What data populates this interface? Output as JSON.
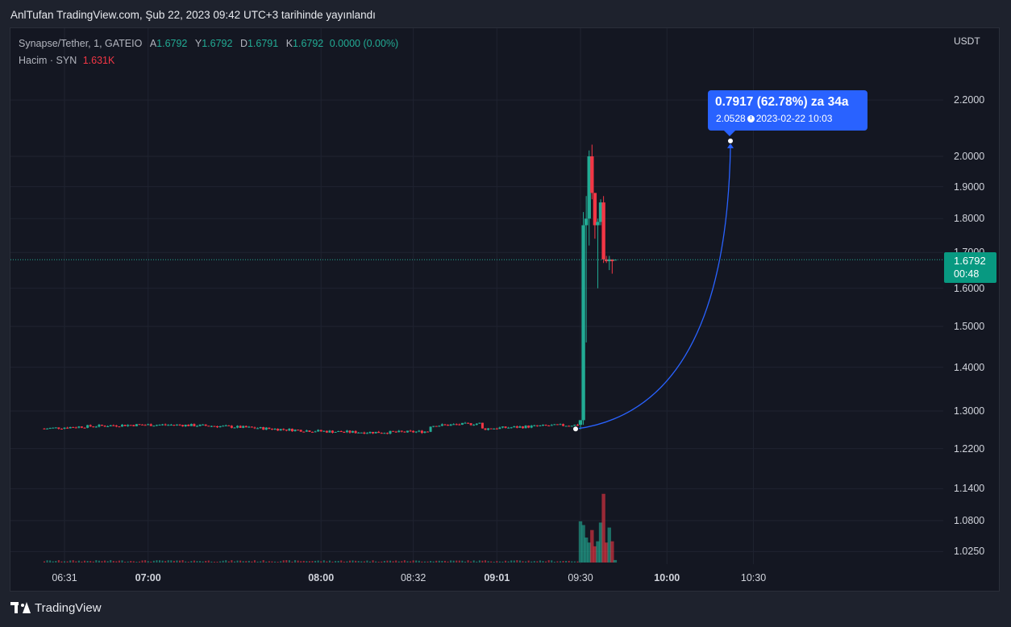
{
  "header": {
    "title": "AnlTufan TradingView.com, Şub 22, 2023 09:42 UTC+3 tarihinde yayınlandı"
  },
  "legend": {
    "symbol": "Synapse/Tether, 1, GATEIO",
    "open_label": "A",
    "open": "1.6792",
    "high_label": "Y",
    "high": "1.6792",
    "low_label": "D",
    "low": "1.6791",
    "close_label": "K",
    "close": "1.6792",
    "change": "0.0000 (0.00%)",
    "volume_label": "Hacim · SYN",
    "volume": "1.631K"
  },
  "currency": "USDT",
  "price_tag": {
    "price": "1.6792",
    "countdown": "00:48"
  },
  "callout": {
    "line1": "0.7917 (62.78%) za 34a",
    "price": "2.0528",
    "datetime": "2023-02-22  10:03"
  },
  "footer": {
    "brand": "TradingView"
  },
  "colors": {
    "up": "#22ab94",
    "down": "#f23645",
    "accent": "#2962ff",
    "background": "#141722"
  },
  "chart_data": {
    "type": "candlestick",
    "y_scale": "log",
    "y_ticks": [
      "2.2000",
      "2.0000",
      "1.9000",
      "1.8000",
      "1.7000",
      "1.6000",
      "1.5000",
      "1.4000",
      "1.3000",
      "1.2200",
      "1.1400",
      "1.0800",
      "1.0250"
    ],
    "x_ticks": [
      {
        "label": "06:31",
        "bold": false
      },
      {
        "label": "07:00",
        "bold": true
      },
      {
        "label": "08:00",
        "bold": true
      },
      {
        "label": "08:32",
        "bold": false
      },
      {
        "label": "09:01",
        "bold": true
      },
      {
        "label": "09:30",
        "bold": false
      },
      {
        "label": "10:00",
        "bold": true
      },
      {
        "label": "10:30",
        "bold": false
      }
    ],
    "last_price": 1.6792,
    "baseline_price": 1.262,
    "spike": [
      {
        "time": "09:30",
        "open": 1.27,
        "high": 1.28,
        "low": 1.26,
        "close": 1.28
      },
      {
        "time": "09:31",
        "open": 1.28,
        "high": 1.82,
        "low": 1.27,
        "close": 1.78
      },
      {
        "time": "09:32",
        "open": 1.78,
        "high": 1.87,
        "low": 1.46,
        "close": 1.8
      },
      {
        "time": "09:33",
        "open": 1.8,
        "high": 2.02,
        "low": 1.72,
        "close": 2.0
      },
      {
        "time": "09:34",
        "open": 2.0,
        "high": 2.04,
        "low": 1.86,
        "close": 1.88
      },
      {
        "time": "09:35",
        "open": 1.88,
        "high": 1.88,
        "low": 1.74,
        "close": 1.78
      },
      {
        "time": "09:36",
        "open": 1.78,
        "high": 1.8,
        "low": 1.6,
        "close": 1.79
      },
      {
        "time": "09:37",
        "open": 1.79,
        "high": 1.86,
        "low": 1.78,
        "close": 1.85
      },
      {
        "time": "09:38",
        "open": 1.85,
        "high": 1.87,
        "low": 1.67,
        "close": 1.68
      },
      {
        "time": "09:39",
        "open": 1.68,
        "high": 1.69,
        "low": 1.67,
        "close": 1.675
      },
      {
        "time": "09:40",
        "open": 1.675,
        "high": 1.69,
        "low": 1.65,
        "close": 1.68
      },
      {
        "time": "09:41",
        "open": 1.68,
        "high": 1.68,
        "low": 1.64,
        "close": 1.675
      },
      {
        "time": "09:42",
        "open": 1.6791,
        "high": 1.6792,
        "low": 1.6791,
        "close": 1.6792
      }
    ],
    "spike_volume": [
      0.33,
      0.3,
      0.2,
      0.16,
      0.26,
      0.13,
      0.17,
      0.32,
      0.55,
      0.16,
      0.28,
      0.17,
      0.02
    ],
    "measure": {
      "from_price": 1.2611,
      "to_price": 2.0528,
      "change": "0.7917 (62.78%)",
      "bars": "34a"
    }
  }
}
